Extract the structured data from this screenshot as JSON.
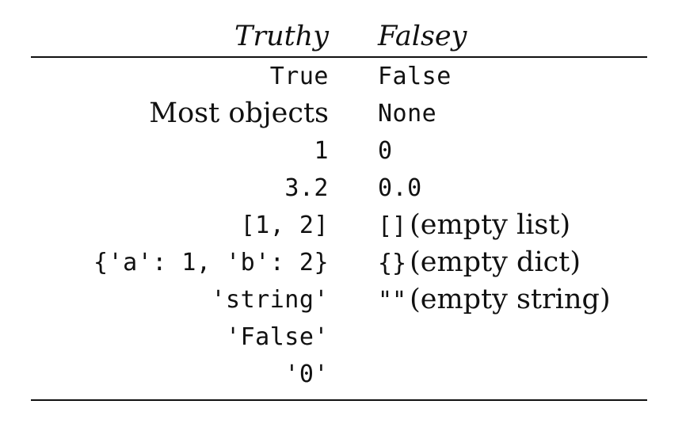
{
  "headers": {
    "truthy": "Truthy",
    "falsey": "Falsey"
  },
  "rows": [
    {
      "truthy": "True",
      "falsey_code": "False",
      "falsey_note": ""
    },
    {
      "truthy": "Most objects",
      "falsey_code": "None",
      "falsey_note": ""
    },
    {
      "truthy": "1",
      "falsey_code": "0",
      "falsey_note": ""
    },
    {
      "truthy": "3.2",
      "falsey_code": "0.0",
      "falsey_note": ""
    },
    {
      "truthy": "[1, 2]",
      "falsey_code": "[]",
      "falsey_note": "(empty list)"
    },
    {
      "truthy": "{'a': 1, 'b': 2}",
      "falsey_code": "{}",
      "falsey_note": "(empty dict)"
    },
    {
      "truthy": "'string'",
      "falsey_code": "\"\"",
      "falsey_note": "(empty string)"
    },
    {
      "truthy": "'False'",
      "falsey_code": "",
      "falsey_note": ""
    },
    {
      "truthy": "'0'",
      "falsey_code": "",
      "falsey_note": ""
    }
  ]
}
